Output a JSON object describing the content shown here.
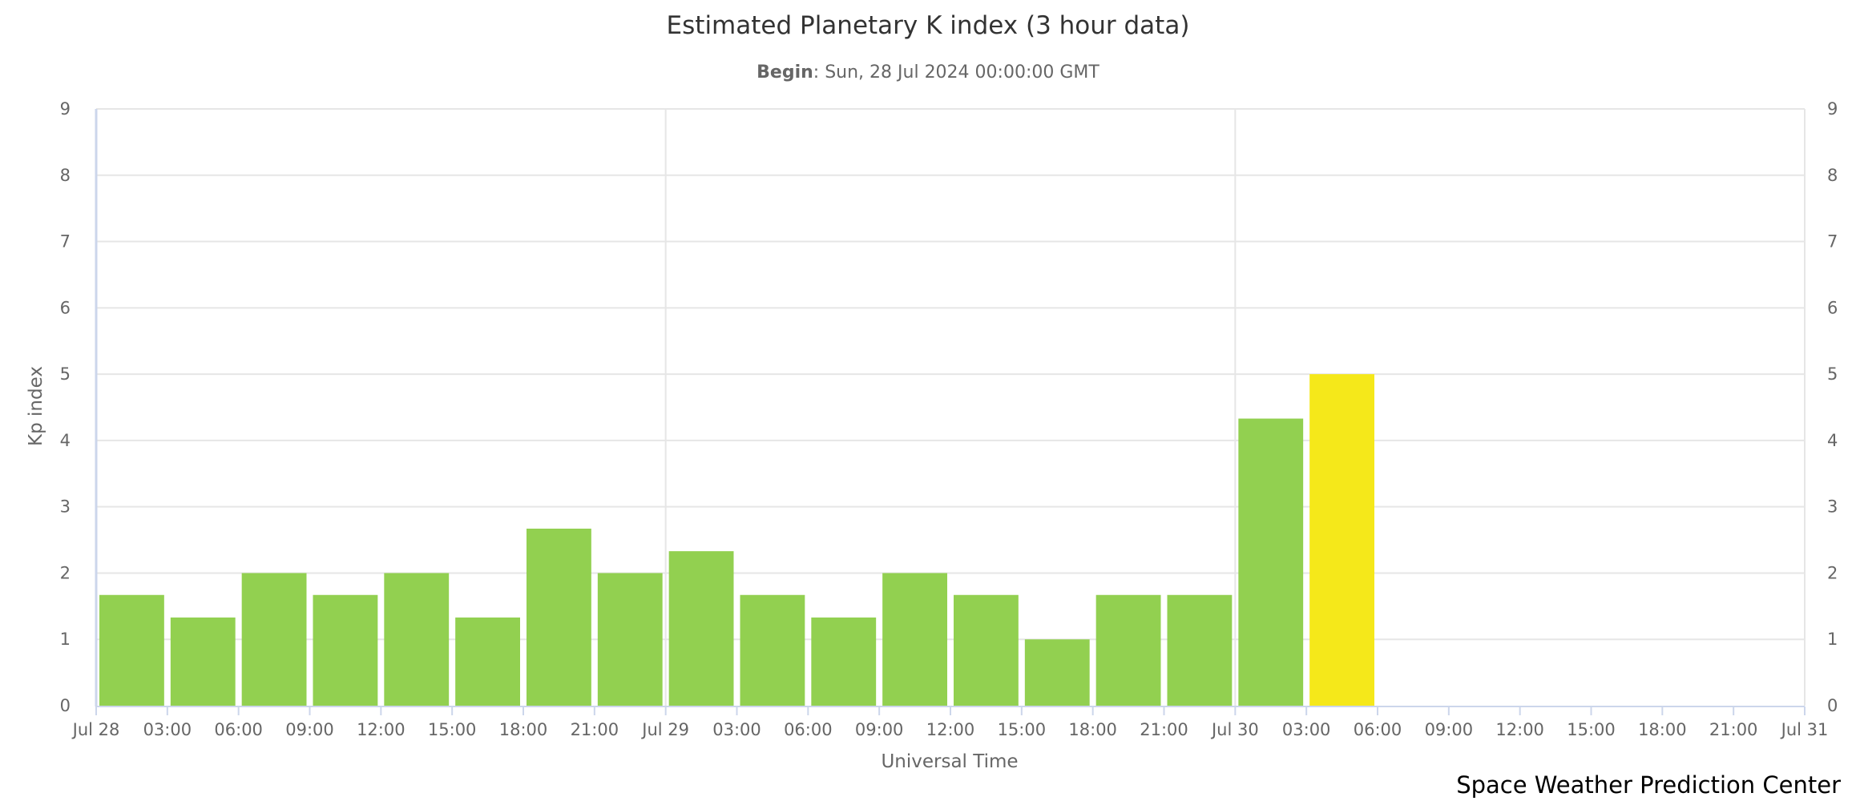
{
  "chart_data": {
    "type": "bar",
    "title": "Estimated Planetary K index (3 hour data)",
    "subtitle_label": "Begin",
    "subtitle_value": ": Sun, 28 Jul 2024 00:00:00 GMT",
    "xlabel": "Universal Time",
    "ylabel": "Kp index",
    "credit": "Space Weather Prediction Center",
    "ylim": [
      0,
      9
    ],
    "y_ticks": [
      "0",
      "1",
      "2",
      "3",
      "4",
      "5",
      "6",
      "7",
      "8",
      "9"
    ],
    "x_tick_labels": [
      "Jul 28",
      "03:00",
      "06:00",
      "09:00",
      "12:00",
      "15:00",
      "18:00",
      "21:00",
      "Jul 29",
      "03:00",
      "06:00",
      "09:00",
      "12:00",
      "15:00",
      "18:00",
      "21:00",
      "Jul 30",
      "03:00",
      "06:00",
      "09:00",
      "12:00",
      "15:00",
      "18:00",
      "21:00",
      "Jul 31"
    ],
    "categories": [
      "Jul 28 00:00",
      "Jul 28 03:00",
      "Jul 28 06:00",
      "Jul 28 09:00",
      "Jul 28 12:00",
      "Jul 28 15:00",
      "Jul 28 18:00",
      "Jul 28 21:00",
      "Jul 29 00:00",
      "Jul 29 03:00",
      "Jul 29 06:00",
      "Jul 29 09:00",
      "Jul 29 12:00",
      "Jul 29 15:00",
      "Jul 29 18:00",
      "Jul 29 21:00",
      "Jul 30 00:00",
      "Jul 30 03:00"
    ],
    "values": [
      1.67,
      1.33,
      2.0,
      1.67,
      2.0,
      1.33,
      2.67,
      2.0,
      2.33,
      1.67,
      1.33,
      2.0,
      1.67,
      1.0,
      1.67,
      1.67,
      4.33,
      5.0
    ],
    "bar_colors": {
      "green": "#92d050",
      "yellow": "#f5e81a"
    },
    "color_rule": "Kp < 5 green, Kp = 5 yellow",
    "grid": true,
    "legend": "none"
  }
}
